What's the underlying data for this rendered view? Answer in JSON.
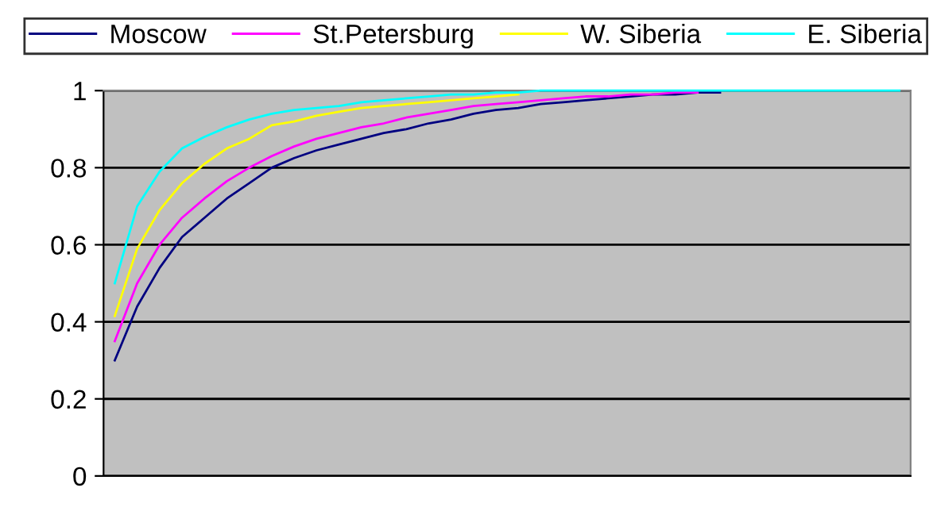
{
  "chart_data": {
    "type": "line",
    "categories": [
      null,
      null,
      null,
      null,
      null,
      null,
      null,
      null,
      null,
      null,
      null,
      null,
      null,
      null,
      null,
      null,
      null,
      null,
      null,
      null,
      null,
      null,
      null,
      null,
      null,
      null,
      null,
      null,
      null,
      null,
      null,
      null,
      null,
      null,
      null,
      null
    ],
    "series": [
      {
        "name": "Moscow",
        "color": "#000080",
        "values": [
          0.3,
          0.44,
          0.54,
          0.62,
          0.67,
          0.72,
          0.76,
          0.8,
          0.825,
          0.845,
          0.86,
          0.875,
          0.89,
          0.9,
          0.915,
          0.925,
          0.94,
          0.95,
          0.955,
          0.965,
          0.97,
          0.975,
          0.98,
          0.985,
          0.99,
          0.99,
          0.995,
          0.995,
          null,
          null,
          null,
          null,
          null,
          null,
          null,
          null
        ]
      },
      {
        "name": "St.Petersburg",
        "color": "#ff00ff",
        "values": [
          0.35,
          0.5,
          0.6,
          0.67,
          0.72,
          0.765,
          0.8,
          0.83,
          0.855,
          0.875,
          0.89,
          0.905,
          0.915,
          0.93,
          0.94,
          0.95,
          0.96,
          0.965,
          0.97,
          0.975,
          0.98,
          0.985,
          0.985,
          0.99,
          0.99,
          0.995,
          0.995,
          null,
          null,
          null,
          null,
          null,
          null,
          null,
          null,
          null
        ]
      },
      {
        "name": "W. Siberia",
        "color": "#ffff00",
        "values": [
          0.415,
          0.59,
          0.69,
          0.76,
          0.81,
          0.85,
          0.875,
          0.91,
          0.92,
          0.935,
          0.945,
          0.955,
          0.96,
          0.965,
          0.97,
          0.975,
          0.98,
          0.985,
          0.99,
          null,
          null,
          null,
          null,
          null,
          null,
          null,
          null,
          null,
          null,
          null,
          null,
          null,
          null,
          null,
          null,
          null
        ]
      },
      {
        "name": "E. Siberia",
        "color": "#00ffff",
        "values": [
          0.5,
          0.7,
          0.79,
          0.85,
          0.88,
          0.905,
          0.925,
          0.94,
          0.95,
          0.955,
          0.96,
          0.97,
          0.975,
          0.98,
          0.985,
          0.99,
          0.99,
          0.995,
          0.995,
          1,
          1,
          1,
          1,
          1,
          1,
          1,
          1,
          1,
          1,
          1,
          1,
          1,
          1,
          1,
          1,
          1
        ]
      }
    ],
    "ylim": [
      0,
      1
    ],
    "yticks": [
      0,
      0.2,
      0.4,
      0.6,
      0.8,
      1
    ],
    "grid": "y",
    "legend": "top",
    "marker": "none",
    "line_style": "solid"
  }
}
